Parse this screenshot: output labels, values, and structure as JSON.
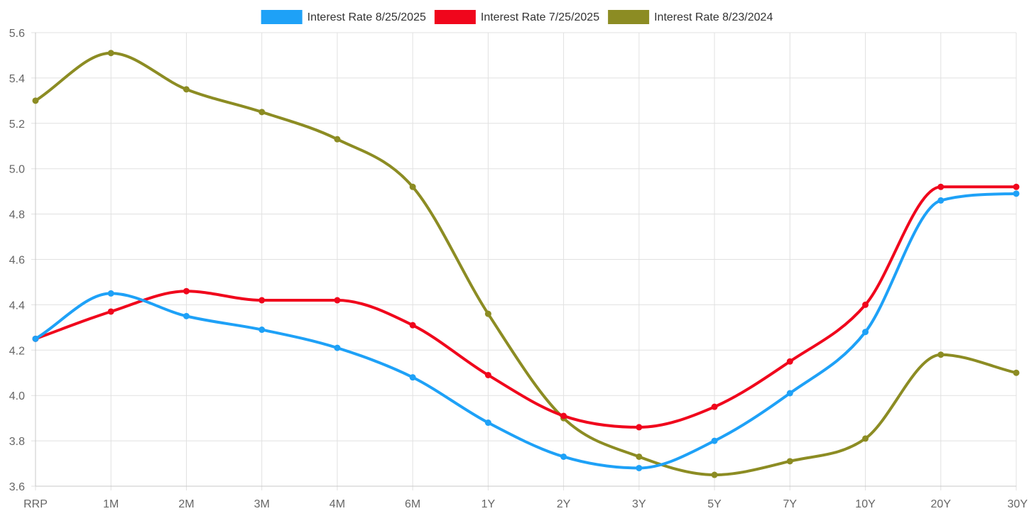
{
  "chart_data": {
    "type": "line",
    "title": "",
    "xlabel": "",
    "ylabel": "",
    "ylim": [
      3.6,
      5.6
    ],
    "yticks": [
      3.6,
      3.8,
      4.0,
      4.2,
      4.4,
      4.6,
      4.8,
      5.0,
      5.2,
      5.4,
      5.6
    ],
    "ytick_labels": [
      "3.6",
      "3.8",
      "4.0",
      "4.2",
      "4.4",
      "4.6",
      "4.8",
      "5.0",
      "5.2",
      "5.4",
      "5.6"
    ],
    "grid": true,
    "legend_position": "top-center",
    "categories": [
      "RRP",
      "1M",
      "2M",
      "3M",
      "4M",
      "6M",
      "1Y",
      "2Y",
      "3Y",
      "5Y",
      "7Y",
      "10Y",
      "20Y",
      "30Y"
    ],
    "series": [
      {
        "name": "Interest Rate 8/25/2025",
        "color": "#1ea1f7",
        "values": [
          4.25,
          4.45,
          4.35,
          4.29,
          4.21,
          4.08,
          3.88,
          3.73,
          3.68,
          3.8,
          4.01,
          4.28,
          4.86,
          4.89
        ]
      },
      {
        "name": "Interest Rate 7/25/2025",
        "color": "#f0061c",
        "values": [
          4.25,
          4.37,
          4.46,
          4.42,
          4.42,
          4.31,
          4.09,
          3.91,
          3.86,
          3.95,
          4.15,
          4.4,
          4.92,
          4.92
        ]
      },
      {
        "name": "Interest Rate 8/23/2024",
        "color": "#8c8c23",
        "values": [
          5.3,
          5.51,
          5.35,
          5.25,
          5.13,
          4.92,
          4.36,
          3.9,
          3.73,
          3.65,
          3.71,
          3.81,
          4.18,
          4.1
        ]
      }
    ]
  }
}
